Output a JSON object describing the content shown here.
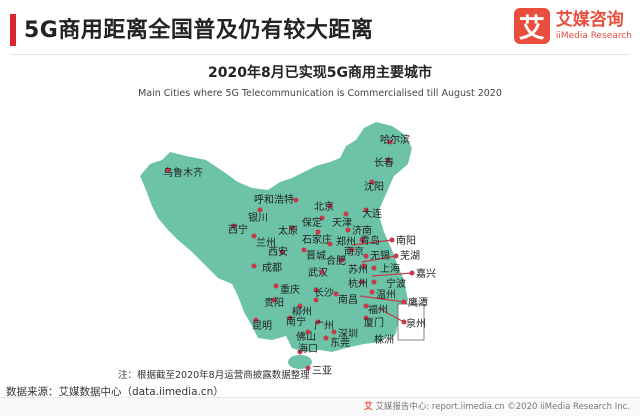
{
  "header": {
    "title": "5G商用距离全国普及仍有较大距离",
    "accent_color": "#d9272e"
  },
  "logo": {
    "mark": "艾",
    "name_cn": "艾媒咨询",
    "name_en": "iiMedia Research",
    "color": "#e94e3d"
  },
  "map": {
    "title": "2020年8月已实现5G商用主要城市",
    "subtitle": "Main Cities where 5G Telecommunication is Commercialised till August 2020",
    "fill_color": "#6cc3a8",
    "marker_color": "#c7394b",
    "cities": [
      "乌鲁木齐",
      "哈尔滨",
      "长春",
      "沈阳",
      "大连",
      "呼和浩特",
      "北京",
      "天津",
      "保定",
      "银川",
      "太原",
      "石家庄",
      "济南",
      "青岛",
      "西宁",
      "兰州",
      "郑州",
      "南京",
      "西安",
      "晋城",
      "合肥",
      "无锡",
      "苏州",
      "上海",
      "成都",
      "武汉",
      "杭州",
      "宁波",
      "重庆",
      "长沙",
      "南昌",
      "温州",
      "福州",
      "贵阳",
      "柳州",
      "厦门",
      "昆明",
      "南宁",
      "广州",
      "佛山",
      "深圳",
      "东莞",
      "海口",
      "三亚",
      "南阳",
      "芜湖",
      "嘉兴",
      "鹰潭",
      "泉州",
      "株洲"
    ]
  },
  "note": "注：根据截至2020年8月运营商披露数据整理",
  "source": "数据来源：艾媒数据中心（data.iimedia.cn）",
  "footer": {
    "icon": "艾",
    "text": "艾媒报告中心: report.iimedia.cn  ©2020  iiMedia Research  Inc."
  }
}
